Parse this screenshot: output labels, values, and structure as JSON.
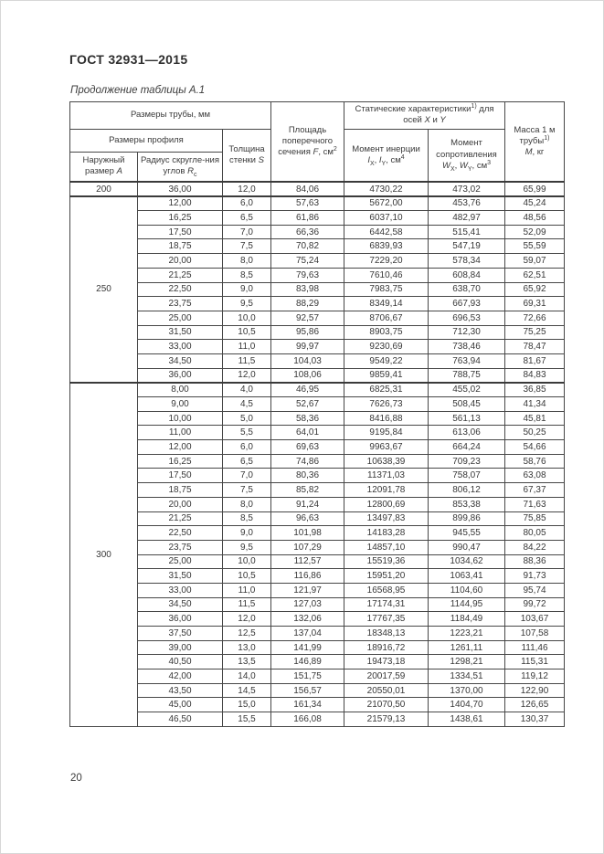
{
  "page": {
    "doc_number": "ГОСТ 32931—2015",
    "table_caption": "Продолжение таблицы А.1",
    "page_number": "20"
  },
  "table": {
    "headers": {
      "pipe_dims": "Размеры трубы, мм",
      "profile_dims": "Размеры профиля",
      "outer": {
        "text": "Наружный размер ",
        "var": "А"
      },
      "radius": {
        "text": "Радиус скругле-ния углов ",
        "var": "R",
        "sub": "с"
      },
      "thickness": {
        "text": "Толщина стенки ",
        "var": "S"
      },
      "area": {
        "text": "Площадь поперечного сечения ",
        "var": "F",
        "unit": ", см",
        "sup": "2"
      },
      "static_chars": {
        "text": "Статические характеристики",
        "sup": "1)",
        "text2": " для осей ",
        "var1": "X",
        "text3": " и ",
        "var2": "Y"
      },
      "inertia": {
        "text": "Момент инерции ",
        "var1": "I",
        "sub1": "X",
        "sep": ", ",
        "var2": "I",
        "sub2": "Y",
        "unit": ", см",
        "sup": "4"
      },
      "resistance": {
        "text": "Момент сопротивления ",
        "var1": "W",
        "sub1": "X",
        "sep": ", ",
        "var2": "W",
        "sub2": "Y",
        "unit": ", см",
        "sup": "3"
      },
      "mass": {
        "line1": "Масса 1 м трубы",
        "sup": "1)",
        "var": "М",
        "unit": ", кг"
      }
    },
    "sections": [
      {
        "outer_size": "200",
        "rows": [
          [
            "36,00",
            "12,0",
            "84,06",
            "4730,22",
            "473,02",
            "65,99"
          ]
        ]
      },
      {
        "outer_size": "250",
        "rows": [
          [
            "12,00",
            "6,0",
            "57,63",
            "5672,00",
            "453,76",
            "45,24"
          ],
          [
            "16,25",
            "6,5",
            "61,86",
            "6037,10",
            "482,97",
            "48,56"
          ],
          [
            "17,50",
            "7,0",
            "66,36",
            "6442,58",
            "515,41",
            "52,09"
          ],
          [
            "18,75",
            "7,5",
            "70,82",
            "6839,93",
            "547,19",
            "55,59"
          ],
          [
            "20,00",
            "8,0",
            "75,24",
            "7229,20",
            "578,34",
            "59,07"
          ],
          [
            "21,25",
            "8,5",
            "79,63",
            "7610,46",
            "608,84",
            "62,51"
          ],
          [
            "22,50",
            "9,0",
            "83,98",
            "7983,75",
            "638,70",
            "65,92"
          ],
          [
            "23,75",
            "9,5",
            "88,29",
            "8349,14",
            "667,93",
            "69,31"
          ],
          [
            "25,00",
            "10,0",
            "92,57",
            "8706,67",
            "696,53",
            "72,66"
          ],
          [
            "31,50",
            "10,5",
            "95,86",
            "8903,75",
            "712,30",
            "75,25"
          ],
          [
            "33,00",
            "11,0",
            "99,97",
            "9230,69",
            "738,46",
            "78,47"
          ],
          [
            "34,50",
            "11,5",
            "104,03",
            "9549,22",
            "763,94",
            "81,67"
          ],
          [
            "36,00",
            "12,0",
            "108,06",
            "9859,41",
            "788,75",
            "84,83"
          ]
        ]
      },
      {
        "outer_size": "300",
        "rows": [
          [
            "8,00",
            "4,0",
            "46,95",
            "6825,31",
            "455,02",
            "36,85"
          ],
          [
            "9,00",
            "4,5",
            "52,67",
            "7626,73",
            "508,45",
            "41,34"
          ],
          [
            "10,00",
            "5,0",
            "58,36",
            "8416,88",
            "561,13",
            "45,81"
          ],
          [
            "11,00",
            "5,5",
            "64,01",
            "9195,84",
            "613,06",
            "50,25"
          ],
          [
            "12,00",
            "6,0",
            "69,63",
            "9963,67",
            "664,24",
            "54,66"
          ],
          [
            "16,25",
            "6,5",
            "74,86",
            "10638,39",
            "709,23",
            "58,76"
          ],
          [
            "17,50",
            "7,0",
            "80,36",
            "11371,03",
            "758,07",
            "63,08"
          ],
          [
            "18,75",
            "7,5",
            "85,82",
            "12091,78",
            "806,12",
            "67,37"
          ],
          [
            "20,00",
            "8,0",
            "91,24",
            "12800,69",
            "853,38",
            "71,63"
          ],
          [
            "21,25",
            "8,5",
            "96,63",
            "13497,83",
            "899,86",
            "75,85"
          ],
          [
            "22,50",
            "9,0",
            "101,98",
            "14183,28",
            "945,55",
            "80,05"
          ],
          [
            "23,75",
            "9,5",
            "107,29",
            "14857,10",
            "990,47",
            "84,22"
          ],
          [
            "25,00",
            "10,0",
            "112,57",
            "15519,36",
            "1034,62",
            "88,36"
          ],
          [
            "31,50",
            "10,5",
            "116,86",
            "15951,20",
            "1063,41",
            "91,73"
          ],
          [
            "33,00",
            "11,0",
            "121,97",
            "16568,95",
            "1104,60",
            "95,74"
          ],
          [
            "34,50",
            "11,5",
            "127,03",
            "17174,31",
            "1144,95",
            "99,72"
          ],
          [
            "36,00",
            "12,0",
            "132,06",
            "17767,35",
            "1184,49",
            "103,67"
          ],
          [
            "37,50",
            "12,5",
            "137,04",
            "18348,13",
            "1223,21",
            "107,58"
          ],
          [
            "39,00",
            "13,0",
            "141,99",
            "18916,72",
            "1261,11",
            "111,46"
          ],
          [
            "40,50",
            "13,5",
            "146,89",
            "19473,18",
            "1298,21",
            "115,31"
          ],
          [
            "42,00",
            "14,0",
            "151,75",
            "20017,59",
            "1334,51",
            "119,12"
          ],
          [
            "43,50",
            "14,5",
            "156,57",
            "20550,01",
            "1370,00",
            "122,90"
          ],
          [
            "45,00",
            "15,0",
            "161,34",
            "21070,50",
            "1404,70",
            "126,65"
          ],
          [
            "46,50",
            "15,5",
            "166,08",
            "21579,13",
            "1438,61",
            "130,37"
          ]
        ]
      }
    ]
  }
}
